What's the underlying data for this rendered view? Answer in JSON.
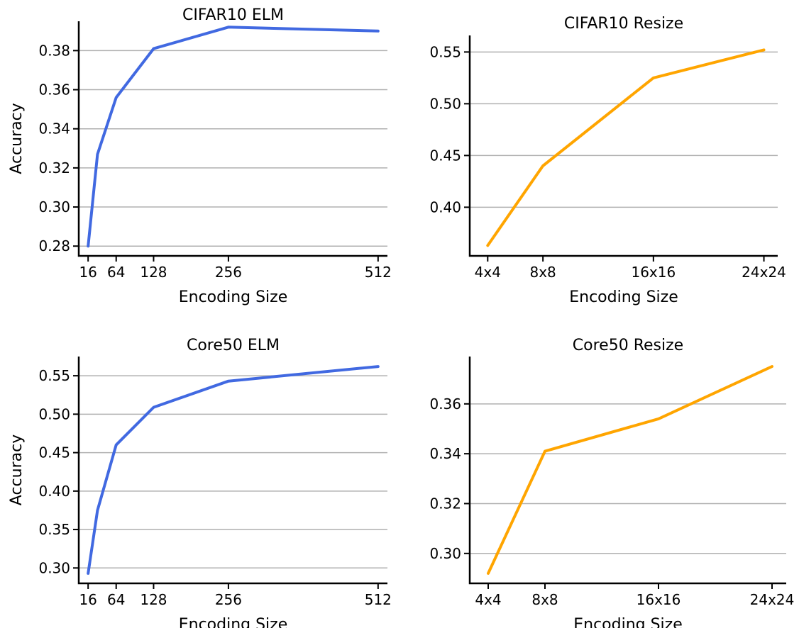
{
  "chart_data": [
    {
      "type": "line",
      "title": "CIFAR10 ELM",
      "xlabel": "Encoding Size",
      "ylabel": "Accuracy",
      "x": [
        16,
        32,
        64,
        128,
        256,
        512
      ],
      "x_ticks": [
        16,
        64,
        128,
        256,
        512
      ],
      "x_tick_labels": [
        "16",
        "64",
        "128",
        "256",
        "512"
      ],
      "xlim": [
        0,
        528
      ],
      "y_ticks": [
        0.28,
        0.3,
        0.32,
        0.34,
        0.36,
        0.38
      ],
      "y_tick_labels": [
        "0.28",
        "0.30",
        "0.32",
        "0.34",
        "0.36",
        "0.38"
      ],
      "ylim": [
        0.275,
        0.395
      ],
      "grid": "horizontal",
      "color": "#4169e1",
      "series": [
        {
          "values": [
            0.28,
            0.327,
            0.356,
            0.381,
            0.392,
            0.39
          ]
        }
      ]
    },
    {
      "type": "line",
      "title": "CIFAR10 Resize",
      "xlabel": "Encoding Size",
      "ylabel": "",
      "x": [
        4,
        8,
        16,
        24
      ],
      "x_ticks": [
        4,
        8,
        16,
        24
      ],
      "x_tick_labels": [
        "4x4",
        "8x8",
        "16x16",
        "24x24"
      ],
      "xlim": [
        2.7,
        25.0
      ],
      "y_ticks": [
        0.4,
        0.45,
        0.5,
        0.55
      ],
      "y_tick_labels": [
        "0.40",
        "0.45",
        "0.50",
        "0.55"
      ],
      "ylim": [
        0.353,
        0.566
      ],
      "grid": "horizontal",
      "color": "#ffa500",
      "series": [
        {
          "values": [
            0.363,
            0.44,
            0.525,
            0.552
          ]
        }
      ]
    },
    {
      "type": "line",
      "title": "Core50 ELM",
      "xlabel": "Encoding Size",
      "ylabel": "Accuracy",
      "x": [
        16,
        32,
        64,
        128,
        256,
        512
      ],
      "x_ticks": [
        16,
        64,
        128,
        256,
        512
      ],
      "x_tick_labels": [
        "16",
        "64",
        "128",
        "256",
        "512"
      ],
      "xlim": [
        0,
        528
      ],
      "y_ticks": [
        0.3,
        0.35,
        0.4,
        0.45,
        0.5,
        0.55
      ],
      "y_tick_labels": [
        "0.30",
        "0.35",
        "0.40",
        "0.45",
        "0.50",
        "0.55"
      ],
      "ylim": [
        0.28,
        0.575
      ],
      "grid": "horizontal",
      "color": "#4169e1",
      "series": [
        {
          "values": [
            0.293,
            0.375,
            0.46,
            0.509,
            0.543,
            0.562
          ]
        }
      ]
    },
    {
      "type": "line",
      "title": "Core50 Resize",
      "xlabel": "Encoding Size",
      "ylabel": "",
      "x": [
        4,
        8,
        16,
        24
      ],
      "x_ticks": [
        4,
        8,
        16,
        24
      ],
      "x_tick_labels": [
        "4x4",
        "8x8",
        "16x16",
        "24x24"
      ],
      "xlim": [
        2.7,
        25.0
      ],
      "y_ticks": [
        0.3,
        0.32,
        0.34,
        0.36
      ],
      "y_tick_labels": [
        "0.30",
        "0.32",
        "0.34",
        "0.36"
      ],
      "ylim": [
        0.288,
        0.379
      ],
      "grid": "horizontal",
      "color": "#ffa500",
      "series": [
        {
          "values": [
            0.292,
            0.341,
            0.354,
            0.375
          ]
        }
      ]
    }
  ]
}
